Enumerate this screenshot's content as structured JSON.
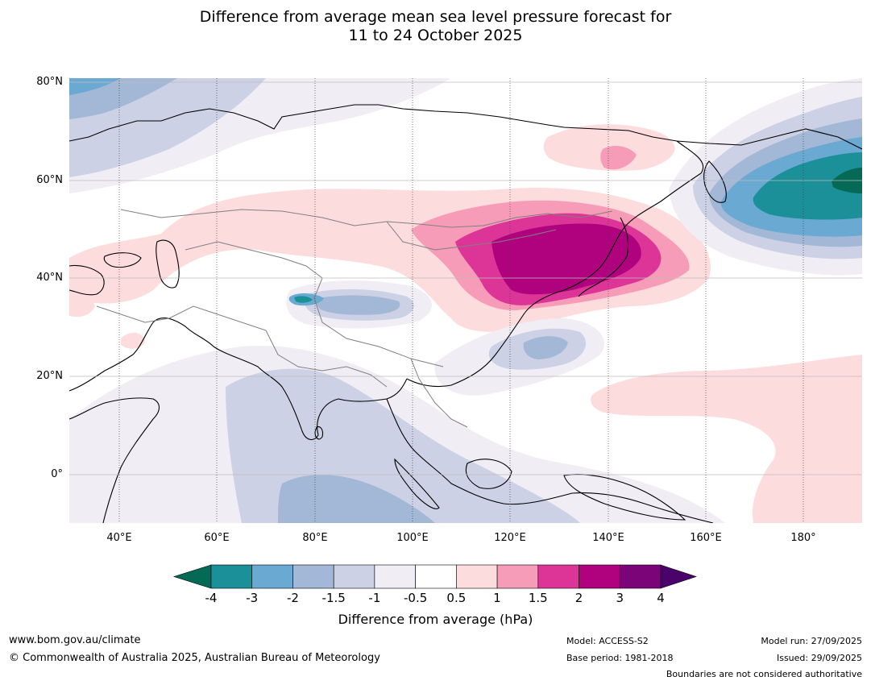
{
  "title": {
    "line1": "Difference from average mean sea level pressure forecast for",
    "line2": "11 to 24 October 2025"
  },
  "map": {
    "lat_labels": [
      "80°N",
      "60°N",
      "40°N",
      "20°N",
      "0°"
    ],
    "lon_labels": [
      "40°E",
      "60°E",
      "80°E",
      "100°E",
      "120°E",
      "140°E",
      "160°E",
      "180°"
    ],
    "lon_range": [
      30,
      192
    ],
    "lat_range": [
      -10,
      81
    ]
  },
  "colorbar": {
    "tick_labels": [
      "-4",
      "-3",
      "-2",
      "-1.5",
      "-1",
      "-0.5",
      "0.5",
      "1",
      "1.5",
      "2",
      "3",
      "4"
    ],
    "colors": [
      "#046a56",
      "#1b9098",
      "#69a9d2",
      "#a3b8d6",
      "#cdd1e5",
      "#f1edf4",
      "#ffffff",
      "#fddcdd",
      "#f79cb8",
      "#dc3597",
      "#b0027f",
      "#7b0578",
      "#4a036a"
    ],
    "label": "Difference from average (hPa)"
  },
  "footer": {
    "website": "www.bom.gov.au/climate",
    "copyright": "© Commonwealth of Australia 2025, Australian Bureau of Meteorology",
    "model": "Model: ACCESS-S2",
    "base_period": "Base period: 1981-2018",
    "model_run": "Model run: 27/09/2025",
    "issued": "Issued: 29/09/2025",
    "disclaimer": "Boundaries are not considered authoritative"
  }
}
